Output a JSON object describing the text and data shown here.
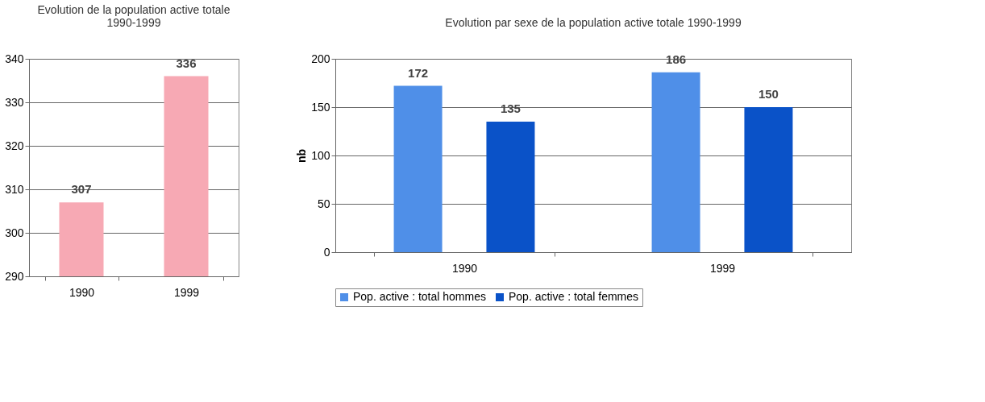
{
  "chart_data": [
    {
      "type": "bar",
      "title": "Evolution de la population active totale\n1990-1999",
      "categories": [
        "1990",
        "1999"
      ],
      "values": [
        307,
        336
      ],
      "color": "#f7a9b4",
      "ylim": [
        290,
        340
      ],
      "yticks": [
        290,
        300,
        310,
        320,
        330,
        340
      ],
      "grid": "y",
      "data_labels": true
    },
    {
      "type": "bar",
      "title": "Evolution par sexe de la population active totale 1990-1999",
      "ylabel": "nb",
      "categories": [
        "1990",
        "1999"
      ],
      "series": [
        {
          "name": "Pop. active : total hommes",
          "color": "#4f8fe8",
          "values": [
            172,
            186
          ]
        },
        {
          "name": "Pop. active : total femmes",
          "color": "#0a52c8",
          "values": [
            135,
            150
          ]
        }
      ],
      "ylim": [
        0,
        200
      ],
      "yticks": [
        0,
        50,
        100,
        150,
        200
      ],
      "grid": "y",
      "legend": "bottom",
      "data_labels": true
    }
  ]
}
